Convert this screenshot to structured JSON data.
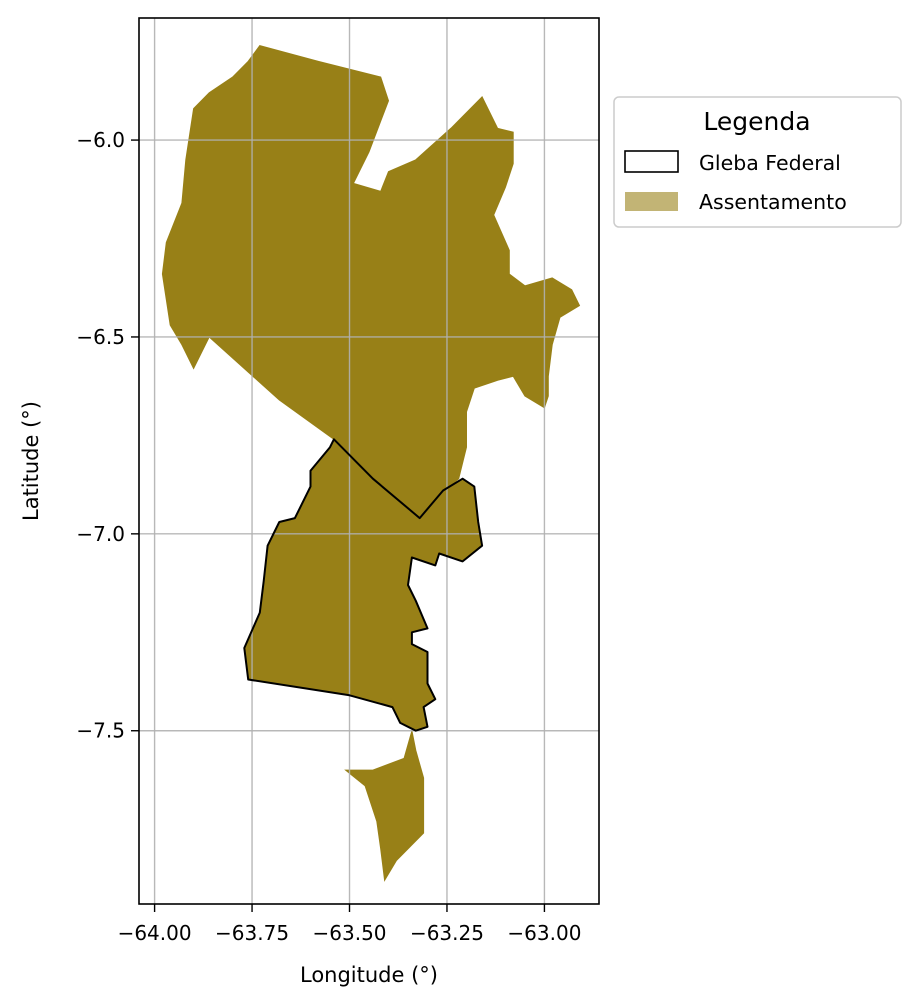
{
  "chart_data": {
    "type": "map",
    "xlabel": "Longitude (°)",
    "ylabel": "Latitude (°)",
    "xlim": [
      -64.04,
      -62.86
    ],
    "ylim": [
      -7.94,
      -5.69
    ],
    "x_ticks": [
      {
        "value": -64.0,
        "label": "−64.00"
      },
      {
        "value": -63.75,
        "label": "−63.75"
      },
      {
        "value": -63.5,
        "label": "−63.50"
      },
      {
        "value": -63.25,
        "label": "−63.25"
      },
      {
        "value": -63.0,
        "label": "−63.00"
      }
    ],
    "y_ticks": [
      {
        "value": -6.0,
        "label": "−6.0"
      },
      {
        "value": -6.5,
        "label": "−6.5"
      },
      {
        "value": -7.0,
        "label": "−7.0"
      },
      {
        "value": -7.5,
        "label": "−7.5"
      }
    ],
    "grid": true,
    "legend": {
      "title": "Legenda",
      "placement": "outside-right-top",
      "entries": [
        {
          "name": "Gleba Federal",
          "style": "outline",
          "color": "#000000"
        },
        {
          "name": "Assentamento",
          "style": "fill",
          "color": "#c2b475"
        }
      ]
    },
    "layers": [
      {
        "name": "Assentamento",
        "color": "#988017",
        "polygons": [
          [
            [
              -63.73,
              -5.76
            ],
            [
              -63.58,
              -5.8
            ],
            [
              -63.42,
              -5.84
            ],
            [
              -63.4,
              -5.9
            ],
            [
              -63.45,
              -6.03
            ],
            [
              -63.49,
              -6.11
            ],
            [
              -63.42,
              -6.13
            ],
            [
              -63.4,
              -6.08
            ],
            [
              -63.33,
              -6.05
            ],
            [
              -63.24,
              -5.97
            ],
            [
              -63.16,
              -5.89
            ],
            [
              -63.12,
              -5.97
            ],
            [
              -63.08,
              -5.98
            ],
            [
              -63.08,
              -6.06
            ],
            [
              -63.1,
              -6.12
            ],
            [
              -63.13,
              -6.19
            ],
            [
              -63.09,
              -6.28
            ],
            [
              -63.09,
              -6.34
            ],
            [
              -63.05,
              -6.37
            ],
            [
              -62.98,
              -6.35
            ],
            [
              -62.93,
              -6.38
            ],
            [
              -62.91,
              -6.42
            ],
            [
              -62.96,
              -6.45
            ],
            [
              -62.98,
              -6.52
            ],
            [
              -62.99,
              -6.6
            ],
            [
              -62.99,
              -6.65
            ],
            [
              -63.0,
              -6.68
            ],
            [
              -63.05,
              -6.65
            ],
            [
              -63.08,
              -6.6
            ],
            [
              -63.12,
              -6.61
            ],
            [
              -63.18,
              -6.63
            ],
            [
              -63.2,
              -6.69
            ],
            [
              -63.2,
              -6.78
            ],
            [
              -63.22,
              -6.86
            ],
            [
              -63.28,
              -6.91
            ],
            [
              -63.32,
              -6.96
            ],
            [
              -63.44,
              -6.86
            ],
            [
              -63.54,
              -6.76
            ],
            [
              -63.68,
              -6.66
            ],
            [
              -63.86,
              -6.5
            ],
            [
              -63.9,
              -6.58
            ],
            [
              -63.93,
              -6.52
            ],
            [
              -63.96,
              -6.47
            ],
            [
              -63.98,
              -6.34
            ],
            [
              -63.97,
              -6.26
            ],
            [
              -63.93,
              -6.16
            ],
            [
              -63.92,
              -6.05
            ],
            [
              -63.9,
              -5.92
            ],
            [
              -63.86,
              -5.88
            ],
            [
              -63.8,
              -5.84
            ],
            [
              -63.76,
              -5.8
            ]
          ],
          [
            [
              -63.54,
              -6.76
            ],
            [
              -63.44,
              -6.86
            ],
            [
              -63.32,
              -6.96
            ],
            [
              -63.26,
              -6.89
            ],
            [
              -63.21,
              -6.86
            ],
            [
              -63.18,
              -6.88
            ],
            [
              -63.17,
              -6.97
            ],
            [
              -63.16,
              -7.03
            ],
            [
              -63.21,
              -7.07
            ],
            [
              -63.27,
              -7.05
            ],
            [
              -63.28,
              -7.08
            ],
            [
              -63.34,
              -7.06
            ],
            [
              -63.35,
              -7.13
            ],
            [
              -63.33,
              -7.17
            ],
            [
              -63.3,
              -7.24
            ],
            [
              -63.34,
              -7.25
            ],
            [
              -63.34,
              -7.28
            ],
            [
              -63.3,
              -7.3
            ],
            [
              -63.3,
              -7.38
            ],
            [
              -63.28,
              -7.42
            ],
            [
              -63.31,
              -7.44
            ],
            [
              -63.3,
              -7.49
            ],
            [
              -63.33,
              -7.5
            ],
            [
              -63.37,
              -7.48
            ],
            [
              -63.39,
              -7.44
            ],
            [
              -63.5,
              -7.41
            ],
            [
              -63.76,
              -7.37
            ],
            [
              -63.77,
              -7.29
            ],
            [
              -63.73,
              -7.2
            ],
            [
              -63.72,
              -7.12
            ],
            [
              -63.71,
              -7.03
            ],
            [
              -63.68,
              -6.97
            ],
            [
              -63.64,
              -6.96
            ],
            [
              -63.6,
              -6.88
            ],
            [
              -63.6,
              -6.84
            ],
            [
              -63.55,
              -6.78
            ]
          ],
          [
            [
              -63.34,
              -7.5
            ],
            [
              -63.36,
              -7.57
            ],
            [
              -63.44,
              -7.6
            ],
            [
              -63.51,
              -7.6
            ],
            [
              -63.46,
              -7.64
            ],
            [
              -63.43,
              -7.73
            ],
            [
              -63.42,
              -7.8
            ],
            [
              -63.41,
              -7.88
            ],
            [
              -63.38,
              -7.83
            ],
            [
              -63.31,
              -7.76
            ],
            [
              -63.31,
              -7.62
            ],
            [
              -63.33,
              -7.55
            ]
          ]
        ]
      },
      {
        "name": "Gleba Federal",
        "color": "#000000",
        "polygons": [
          [
            [
              -63.54,
              -6.76
            ],
            [
              -63.44,
              -6.86
            ],
            [
              -63.32,
              -6.96
            ],
            [
              -63.26,
              -6.89
            ],
            [
              -63.21,
              -6.86
            ],
            [
              -63.18,
              -6.88
            ],
            [
              -63.17,
              -6.97
            ],
            [
              -63.16,
              -7.03
            ],
            [
              -63.21,
              -7.07
            ],
            [
              -63.27,
              -7.05
            ],
            [
              -63.28,
              -7.08
            ],
            [
              -63.34,
              -7.06
            ],
            [
              -63.35,
              -7.13
            ],
            [
              -63.33,
              -7.17
            ],
            [
              -63.3,
              -7.24
            ],
            [
              -63.34,
              -7.25
            ],
            [
              -63.34,
              -7.28
            ],
            [
              -63.3,
              -7.3
            ],
            [
              -63.3,
              -7.38
            ],
            [
              -63.28,
              -7.42
            ],
            [
              -63.31,
              -7.44
            ],
            [
              -63.3,
              -7.49
            ],
            [
              -63.33,
              -7.5
            ],
            [
              -63.37,
              -7.48
            ],
            [
              -63.39,
              -7.44
            ],
            [
              -63.5,
              -7.41
            ],
            [
              -63.76,
              -7.37
            ],
            [
              -63.77,
              -7.29
            ],
            [
              -63.73,
              -7.2
            ],
            [
              -63.72,
              -7.12
            ],
            [
              -63.71,
              -7.03
            ],
            [
              -63.68,
              -6.97
            ],
            [
              -63.64,
              -6.96
            ],
            [
              -63.6,
              -6.88
            ],
            [
              -63.6,
              -6.84
            ],
            [
              -63.55,
              -6.78
            ]
          ]
        ]
      }
    ]
  }
}
